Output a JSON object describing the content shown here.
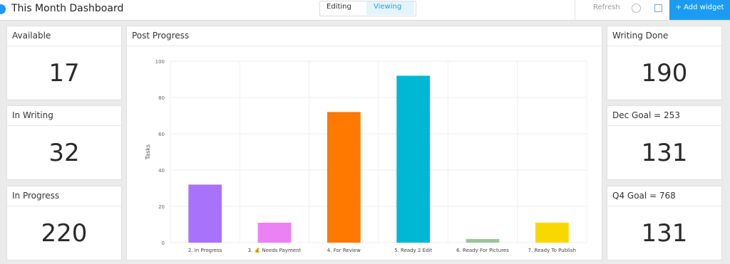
{
  "header": {
    "title": "This Month Dashboard",
    "modes": [
      "Editing",
      "Viewing"
    ],
    "refresh": "Refresh",
    "add_widget": "+ Add widget"
  },
  "widgets_left": [
    {
      "title": "Available",
      "value": "17"
    },
    {
      "title": "In Writing",
      "value": "32"
    },
    {
      "title": "In Progress",
      "value": "220"
    }
  ],
  "widgets_right": [
    {
      "title": "Writing Done",
      "value": "190"
    },
    {
      "title": "Dec Goal = 253",
      "value": "131"
    },
    {
      "title": "Q4 Goal = 768",
      "value": "131"
    }
  ],
  "chart_data": {
    "type": "bar",
    "title": "Post Progress",
    "y_label": "Tasks",
    "categories": [
      "2. In Progress",
      "3. 💰 Needs Payment",
      "4. For Review",
      "5. Ready 2 Edit",
      "6. Ready For Pictures",
      "7. Ready To Publish"
    ],
    "values": [
      32,
      11,
      72,
      92,
      2,
      11
    ],
    "colors": [
      "#a972fb",
      "#ea82f6",
      "#ff7800",
      "#00b8d4",
      "#9cc49b",
      "#f8d800"
    ],
    "ylim": [
      0,
      100
    ],
    "yticks": [
      0,
      20,
      40,
      60,
      80,
      100
    ],
    "grid": true
  }
}
